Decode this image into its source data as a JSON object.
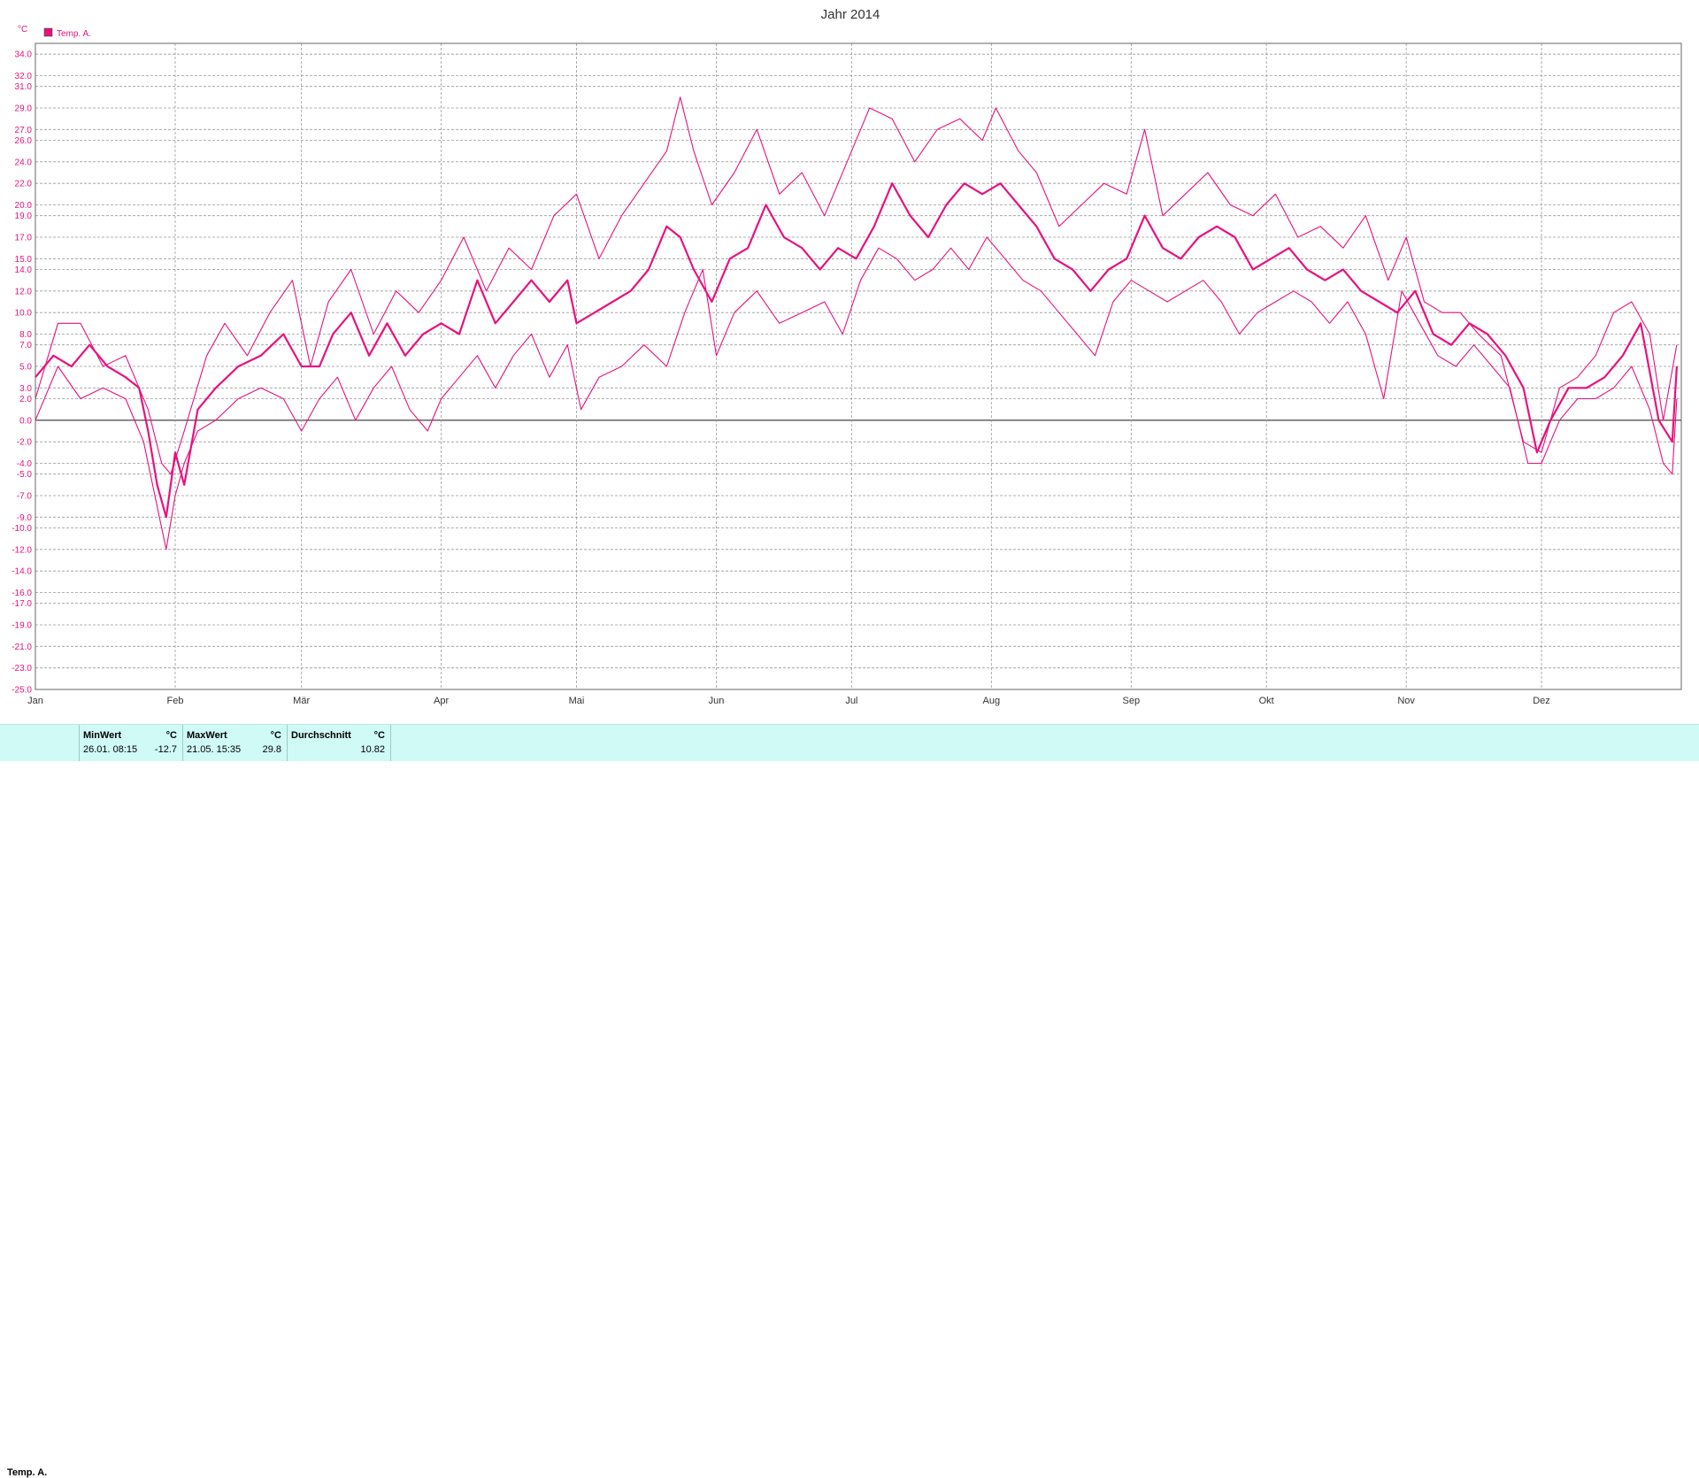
{
  "chart_data": {
    "type": "line",
    "title": "Jahr 2014",
    "unit_label": "°C",
    "legend": {
      "label": "Temp. A.",
      "placement": "top-left",
      "color": "#e8117f"
    },
    "colors": {
      "series": "#e8117f",
      "axis_text": "#e8117f",
      "grid": "#999999",
      "zero_line": "#555555"
    },
    "grid": true,
    "xlim": [
      0,
      365
    ],
    "ylim": [
      -25,
      35
    ],
    "y_ticks": [
      "34.0",
      "32.0",
      "31.0",
      "29.0",
      "27.0",
      "26.0",
      "24.0",
      "22.0",
      "20.0",
      "19.0",
      "17.0",
      "15.0",
      "14.0",
      "12.0",
      "10.0",
      "8.0",
      "7.0",
      "5.0",
      "3.0",
      "2.0",
      "0.0",
      "-2.0",
      "-4.0",
      "-5.0",
      "-7.0",
      "-9.0",
      "-10.0",
      "-12.0",
      "-14.0",
      "-16.0",
      "-17.0",
      "-19.0",
      "-21.0",
      "-23.0",
      "-25.0"
    ],
    "x_ticks": [
      {
        "label": "Jan",
        "day": 0
      },
      {
        "label": "Feb",
        "day": 31
      },
      {
        "label": "Mär",
        "day": 59
      },
      {
        "label": "Apr",
        "day": 90
      },
      {
        "label": "Mai",
        "day": 120
      },
      {
        "label": "Jun",
        "day": 151
      },
      {
        "label": "Jul",
        "day": 181
      },
      {
        "label": "Aug",
        "day": 212
      },
      {
        "label": "Sep",
        "day": 243
      },
      {
        "label": "Okt",
        "day": 273
      },
      {
        "label": "Nov",
        "day": 304
      },
      {
        "label": "Dez",
        "day": 334
      }
    ],
    "series": [
      {
        "role": "max",
        "points": [
          [
            0,
            2
          ],
          [
            5,
            9
          ],
          [
            10,
            9
          ],
          [
            15,
            5
          ],
          [
            20,
            6
          ],
          [
            25,
            1
          ],
          [
            28,
            -4
          ],
          [
            30,
            -5
          ],
          [
            33,
            -1
          ],
          [
            38,
            6
          ],
          [
            42,
            9
          ],
          [
            47,
            6
          ],
          [
            52,
            10
          ],
          [
            57,
            13
          ],
          [
            61,
            5
          ],
          [
            65,
            11
          ],
          [
            70,
            14
          ],
          [
            75,
            8
          ],
          [
            80,
            12
          ],
          [
            85,
            10
          ],
          [
            90,
            13
          ],
          [
            95,
            17
          ],
          [
            100,
            12
          ],
          [
            105,
            16
          ],
          [
            110,
            14
          ],
          [
            115,
            19
          ],
          [
            120,
            21
          ],
          [
            125,
            15
          ],
          [
            130,
            19
          ],
          [
            135,
            22
          ],
          [
            140,
            25
          ],
          [
            143,
            30
          ],
          [
            146,
            25
          ],
          [
            150,
            20
          ],
          [
            155,
            23
          ],
          [
            160,
            27
          ],
          [
            165,
            21
          ],
          [
            170,
            23
          ],
          [
            175,
            19
          ],
          [
            180,
            24
          ],
          [
            185,
            29
          ],
          [
            190,
            28
          ],
          [
            195,
            24
          ],
          [
            200,
            27
          ],
          [
            205,
            28
          ],
          [
            210,
            26
          ],
          [
            213,
            29
          ],
          [
            218,
            25
          ],
          [
            222,
            23
          ],
          [
            227,
            18
          ],
          [
            232,
            20
          ],
          [
            237,
            22
          ],
          [
            242,
            21
          ],
          [
            246,
            27
          ],
          [
            250,
            19
          ],
          [
            255,
            21
          ],
          [
            260,
            23
          ],
          [
            265,
            20
          ],
          [
            270,
            19
          ],
          [
            275,
            21
          ],
          [
            280,
            17
          ],
          [
            285,
            18
          ],
          [
            290,
            16
          ],
          [
            295,
            19
          ],
          [
            300,
            13
          ],
          [
            304,
            17
          ],
          [
            308,
            11
          ],
          [
            312,
            10
          ],
          [
            316,
            10
          ],
          [
            320,
            8
          ],
          [
            325,
            6
          ],
          [
            330,
            -2
          ],
          [
            334,
            -3
          ],
          [
            338,
            3
          ],
          [
            342,
            4
          ],
          [
            346,
            6
          ],
          [
            350,
            10
          ],
          [
            354,
            11
          ],
          [
            358,
            8
          ],
          [
            361,
            0
          ],
          [
            364,
            7
          ]
        ]
      },
      {
        "role": "mean",
        "points": [
          [
            0,
            4
          ],
          [
            4,
            6
          ],
          [
            8,
            5
          ],
          [
            12,
            7
          ],
          [
            16,
            5
          ],
          [
            20,
            4
          ],
          [
            23,
            3
          ],
          [
            25,
            -1
          ],
          [
            27,
            -6
          ],
          [
            29,
            -9
          ],
          [
            31,
            -3
          ],
          [
            33,
            -6
          ],
          [
            36,
            1
          ],
          [
            40,
            3
          ],
          [
            45,
            5
          ],
          [
            50,
            6
          ],
          [
            55,
            8
          ],
          [
            59,
            5
          ],
          [
            63,
            5
          ],
          [
            66,
            8
          ],
          [
            70,
            10
          ],
          [
            74,
            6
          ],
          [
            78,
            9
          ],
          [
            82,
            6
          ],
          [
            86,
            8
          ],
          [
            90,
            9
          ],
          [
            94,
            8
          ],
          [
            98,
            13
          ],
          [
            102,
            9
          ],
          [
            106,
            11
          ],
          [
            110,
            13
          ],
          [
            114,
            11
          ],
          [
            118,
            13
          ],
          [
            120,
            9
          ],
          [
            124,
            10
          ],
          [
            128,
            11
          ],
          [
            132,
            12
          ],
          [
            136,
            14
          ],
          [
            140,
            18
          ],
          [
            143,
            17
          ],
          [
            146,
            14
          ],
          [
            150,
            11
          ],
          [
            154,
            15
          ],
          [
            158,
            16
          ],
          [
            162,
            20
          ],
          [
            166,
            17
          ],
          [
            170,
            16
          ],
          [
            174,
            14
          ],
          [
            178,
            16
          ],
          [
            182,
            15
          ],
          [
            186,
            18
          ],
          [
            190,
            22
          ],
          [
            194,
            19
          ],
          [
            198,
            17
          ],
          [
            202,
            20
          ],
          [
            206,
            22
          ],
          [
            210,
            21
          ],
          [
            214,
            22
          ],
          [
            218,
            20
          ],
          [
            222,
            18
          ],
          [
            226,
            15
          ],
          [
            230,
            14
          ],
          [
            234,
            12
          ],
          [
            238,
            14
          ],
          [
            242,
            15
          ],
          [
            246,
            19
          ],
          [
            250,
            16
          ],
          [
            254,
            15
          ],
          [
            258,
            17
          ],
          [
            262,
            18
          ],
          [
            266,
            17
          ],
          [
            270,
            14
          ],
          [
            274,
            15
          ],
          [
            278,
            16
          ],
          [
            282,
            14
          ],
          [
            286,
            13
          ],
          [
            290,
            14
          ],
          [
            294,
            12
          ],
          [
            298,
            11
          ],
          [
            302,
            10
          ],
          [
            306,
            12
          ],
          [
            310,
            8
          ],
          [
            314,
            7
          ],
          [
            318,
            9
          ],
          [
            322,
            8
          ],
          [
            326,
            6
          ],
          [
            330,
            3
          ],
          [
            333,
            -3
          ],
          [
            336,
            0
          ],
          [
            340,
            3
          ],
          [
            344,
            3
          ],
          [
            348,
            4
          ],
          [
            352,
            6
          ],
          [
            356,
            9
          ],
          [
            360,
            0
          ],
          [
            363,
            -2
          ],
          [
            364,
            5
          ]
        ]
      },
      {
        "role": "min",
        "points": [
          [
            0,
            0
          ],
          [
            5,
            5
          ],
          [
            10,
            2
          ],
          [
            15,
            3
          ],
          [
            20,
            2
          ],
          [
            24,
            -2
          ],
          [
            27,
            -8
          ],
          [
            29,
            -12
          ],
          [
            31,
            -7
          ],
          [
            33,
            -4
          ],
          [
            36,
            -1
          ],
          [
            40,
            0
          ],
          [
            45,
            2
          ],
          [
            50,
            3
          ],
          [
            55,
            2
          ],
          [
            59,
            -1
          ],
          [
            63,
            2
          ],
          [
            67,
            4
          ],
          [
            71,
            0
          ],
          [
            75,
            3
          ],
          [
            79,
            5
          ],
          [
            83,
            1
          ],
          [
            87,
            -1
          ],
          [
            90,
            2
          ],
          [
            94,
            4
          ],
          [
            98,
            6
          ],
          [
            102,
            3
          ],
          [
            106,
            6
          ],
          [
            110,
            8
          ],
          [
            114,
            4
          ],
          [
            118,
            7
          ],
          [
            121,
            1
          ],
          [
            125,
            4
          ],
          [
            130,
            5
          ],
          [
            135,
            7
          ],
          [
            140,
            5
          ],
          [
            144,
            10
          ],
          [
            148,
            14
          ],
          [
            151,
            6
          ],
          [
            155,
            10
          ],
          [
            160,
            12
          ],
          [
            165,
            9
          ],
          [
            170,
            10
          ],
          [
            175,
            11
          ],
          [
            179,
            8
          ],
          [
            183,
            13
          ],
          [
            187,
            16
          ],
          [
            191,
            15
          ],
          [
            195,
            13
          ],
          [
            199,
            14
          ],
          [
            203,
            16
          ],
          [
            207,
            14
          ],
          [
            211,
            17
          ],
          [
            215,
            15
          ],
          [
            219,
            13
          ],
          [
            223,
            12
          ],
          [
            227,
            10
          ],
          [
            231,
            8
          ],
          [
            235,
            6
          ],
          [
            239,
            11
          ],
          [
            243,
            13
          ],
          [
            247,
            12
          ],
          [
            251,
            11
          ],
          [
            255,
            12
          ],
          [
            259,
            13
          ],
          [
            263,
            11
          ],
          [
            267,
            8
          ],
          [
            271,
            10
          ],
          [
            275,
            11
          ],
          [
            279,
            12
          ],
          [
            283,
            11
          ],
          [
            287,
            9
          ],
          [
            291,
            11
          ],
          [
            295,
            8
          ],
          [
            299,
            2
          ],
          [
            303,
            12
          ],
          [
            307,
            9
          ],
          [
            311,
            6
          ],
          [
            315,
            5
          ],
          [
            319,
            7
          ],
          [
            323,
            5
          ],
          [
            327,
            3
          ],
          [
            331,
            -4
          ],
          [
            334,
            -4
          ],
          [
            338,
            0
          ],
          [
            342,
            2
          ],
          [
            346,
            2
          ],
          [
            350,
            3
          ],
          [
            354,
            5
          ],
          [
            358,
            1
          ],
          [
            361,
            -4
          ],
          [
            363,
            -5
          ],
          [
            364,
            2
          ]
        ]
      }
    ]
  },
  "stats": {
    "series_label": "Temp. A.",
    "min": {
      "header": "MinWert",
      "unit": "°C",
      "when": "26.01.  08:15",
      "value": "-12.7"
    },
    "max": {
      "header": "MaxWert",
      "unit": "°C",
      "when": "21.05.  15:35",
      "value": "29.8"
    },
    "avg": {
      "header": "Durchschnitt",
      "unit": "°C",
      "value": "10.82"
    }
  }
}
